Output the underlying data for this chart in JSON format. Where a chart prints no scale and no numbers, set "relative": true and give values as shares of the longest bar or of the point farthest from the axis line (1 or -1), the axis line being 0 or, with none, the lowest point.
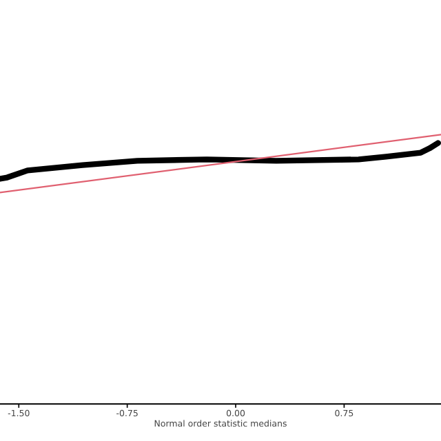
{
  "chart_data": {
    "type": "line",
    "relative": true,
    "xlabel": "Normal order statistic medians",
    "xlim": [
      -1.63,
      1.42
    ],
    "xticks": [
      {
        "value": -1.5,
        "label": "-1.50"
      },
      {
        "value": -0.75,
        "label": "-0.75"
      },
      {
        "value": 0,
        "label": "0.00"
      },
      {
        "value": 0.75,
        "label": "0.75"
      }
    ],
    "series": [
      {
        "color": "#000000",
        "x": [
          -1.63,
          -1.58,
          -1.44,
          -1.06,
          -0.68,
          -0.2,
          0.28,
          0.85,
          1.04,
          1.28,
          1.34,
          1.4
        ],
        "values": [
          0.836,
          0.841,
          0.867,
          0.887,
          0.903,
          0.908,
          0.903,
          0.908,
          0.918,
          0.933,
          0.949,
          0.969
        ]
      },
      {
        "color": "#e06070",
        "x": [
          -1.63,
          1.42
        ],
        "values": [
          0.785,
          1.0
        ]
      }
    ]
  }
}
